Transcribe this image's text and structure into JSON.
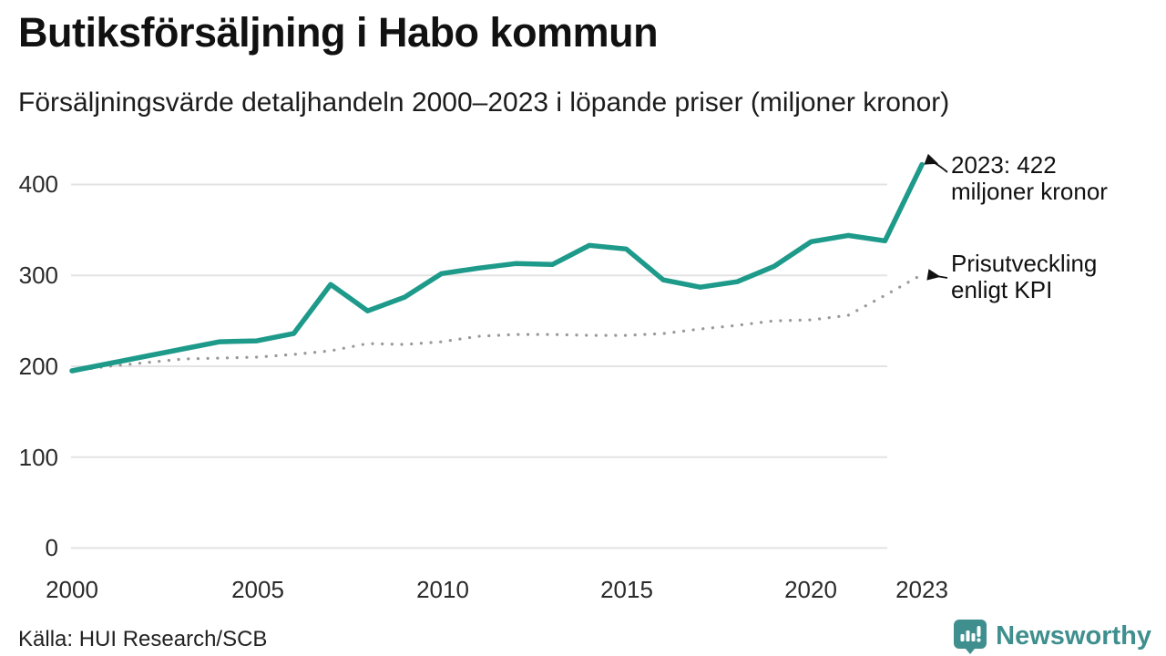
{
  "header": {
    "title": "Butiksförsäljning i Habo kommun",
    "subtitle": "Försäljningsvärde detaljhandeln 2000–2023 i löpande priser (miljoner kronor)"
  },
  "chart_data": {
    "type": "line",
    "x": [
      2000,
      2001,
      2002,
      2003,
      2004,
      2005,
      2006,
      2007,
      2008,
      2009,
      2010,
      2011,
      2012,
      2013,
      2014,
      2015,
      2016,
      2017,
      2018,
      2019,
      2020,
      2021,
      2022,
      2023
    ],
    "series": [
      {
        "name": "Butiksförsäljning i löpande priser (miljoner kronor)",
        "style": "solid",
        "color": "#1d9a8a",
        "values": [
          195,
          203,
          211,
          219,
          227,
          228,
          236,
          290,
          261,
          276,
          302,
          308,
          313,
          312,
          333,
          329,
          295,
          287,
          293,
          310,
          337,
          344,
          338,
          422
        ]
      },
      {
        "name": "Prisutveckling enligt KPI",
        "style": "dotted",
        "color": "#999999",
        "values": [
          195,
          200,
          204,
          208,
          209,
          210,
          213,
          217,
          225,
          224,
          227,
          233,
          235,
          235,
          234,
          234,
          236,
          241,
          245,
          250,
          251,
          256,
          278,
          301
        ]
      }
    ],
    "ylim": [
      0,
      430
    ],
    "y_ticks": [
      400,
      300,
      200,
      100,
      0
    ],
    "y_tick_labels": [
      "400",
      "300",
      "200",
      "100",
      "0"
    ],
    "x_tick_labels": [
      "2000",
      "2005",
      "2010",
      "2015",
      "2020",
      "2023"
    ],
    "grid": "horizontal gridlines only",
    "legend_position": "right-side annotations",
    "annotations": [
      {
        "line1": "2023: 422",
        "line2": "miljoner kronor",
        "points_to": "end of sales line (2023, 422)"
      },
      {
        "line1": "Prisutveckling",
        "line2": "enligt KPI",
        "points_to": "end of KPI dotted line (2023, ~301)"
      }
    ]
  },
  "footer": {
    "source": "Källa: HUI Research/SCB",
    "brand": "Newsworthy"
  },
  "colors": {
    "sales_line": "#1d9a8a",
    "kpi_dots": "#999999",
    "grid": "#e3e3e3",
    "brand_teal": "#3f8f8e",
    "text": "#111111"
  }
}
